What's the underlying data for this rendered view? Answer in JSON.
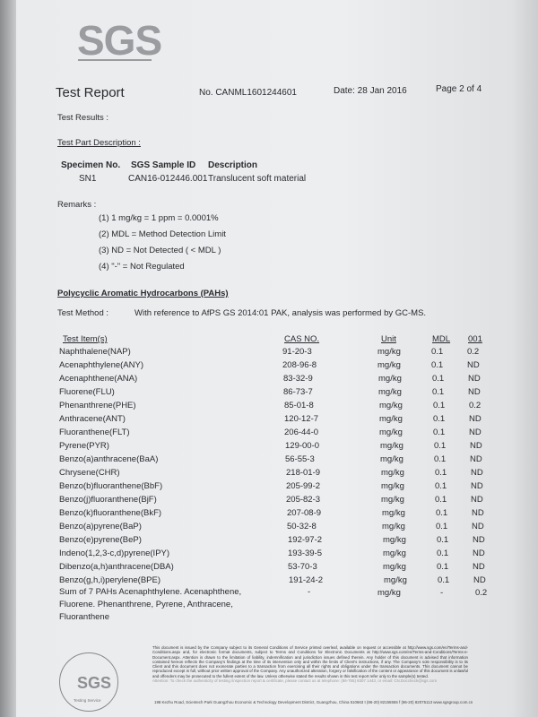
{
  "logo": "SGS",
  "header": {
    "title": "Test Report",
    "report_no": "No. CANML1601244601",
    "date": "Date: 28 Jan 2016",
    "page": "Page 2 of 4"
  },
  "test_results_label": "Test Results :",
  "test_part_description_label": "Test Part Description :",
  "specimen": {
    "headers": [
      "Specimen No.",
      "SGS Sample ID",
      "Description"
    ],
    "row": [
      "SN1",
      "CAN16-012446.001",
      "Translucent soft material"
    ]
  },
  "remarks": {
    "label": "Remarks :",
    "items": [
      "(1) 1 mg/kg = 1 ppm = 0.0001%",
      "(2) MDL = Method Detection Limit",
      "(3) ND = Not Detected ( < MDL )",
      "(4) \"-\" = Not Regulated"
    ]
  },
  "section_title": "Polycyclic Aromatic Hydrocarbons (PAHs)",
  "test_method": {
    "label": "Test Method :",
    "text": "With reference to AfPS GS 2014:01 PAK, analysis was performed by GC-MS."
  },
  "table": {
    "headers": [
      "Test Item(s)",
      "CAS NO.",
      "Unit",
      "MDL",
      "001"
    ],
    "rows": [
      [
        "Naphthalene(NAP)",
        "91-20-3",
        "mg/kg",
        "0.1",
        "0.2"
      ],
      [
        "Acenaphthylene(ANY)",
        "208-96-8",
        "mg/kg",
        "0.1",
        "ND"
      ],
      [
        "Acenaphthene(ANA)",
        "83-32-9",
        "mg/kg",
        "0.1",
        "ND"
      ],
      [
        "Fluorene(FLU)",
        "86-73-7",
        "mg/kg",
        "0.1",
        "ND"
      ],
      [
        "Phenanthrene(PHE)",
        "85-01-8",
        "mg/kg",
        "0.1",
        "0.2"
      ],
      [
        "Anthracene(ANT)",
        "120-12-7",
        "mg/kg",
        "0.1",
        "ND"
      ],
      [
        "Fluoranthene(FLT)",
        "206-44-0",
        "mg/kg",
        "0.1",
        "ND"
      ],
      [
        "Pyrene(PYR)",
        "129-00-0",
        "mg/kg",
        "0.1",
        "ND"
      ],
      [
        "Benzo(a)anthracene(BaA)",
        "56-55-3",
        "mg/kg",
        "0.1",
        "ND"
      ],
      [
        "Chrysene(CHR)",
        "218-01-9",
        "mg/kg",
        "0.1",
        "ND"
      ],
      [
        "Benzo(b)fluoranthene(BbF)",
        "205-99-2",
        "mg/kg",
        "0.1",
        "ND"
      ],
      [
        "Benzo(j)fluoranthene(BjF)",
        "205-82-3",
        "mg/kg",
        "0.1",
        "ND"
      ],
      [
        "Benzo(k)fluoranthene(BkF)",
        "207-08-9",
        "mg/kg",
        "0.1",
        "ND"
      ],
      [
        "Benzo(a)pyrene(BaP)",
        "50-32-8",
        "mg/kg",
        "0.1",
        "ND"
      ],
      [
        "Benzo(e)pyrene(BeP)",
        "192-97-2",
        "mg/kg",
        "0.1",
        "ND"
      ],
      [
        "Indeno(1,2,3-c,d)pyrene(IPY)",
        "193-39-5",
        "mg/kg",
        "0.1",
        "ND"
      ],
      [
        "Dibenzo(a,h)anthracene(DBA)",
        "53-70-3",
        "mg/kg",
        "0.1",
        "ND"
      ],
      [
        "Benzo(g,h,i)perylene(BPE)",
        "191-24-2",
        "mg/kg",
        "0.1",
        "ND"
      ]
    ],
    "sum_row": {
      "lines": [
        "Sum of 7 PAHs Acenaphthylene. Acenaphthene,",
        "Fluorene. Phenanthrene, Pyrene, Anthracene,",
        "Fluoranthene"
      ],
      "cas": "-",
      "unit": "mg/kg",
      "mdl": "-",
      "result": "0.2"
    }
  },
  "footer": {
    "disclaimer": "This document is issued by the Company subject to its General Conditions of Service printed overleaf, available on request or accessible at http://www.sgs.com/en/Terms-and-Conditions.aspx and, for electronic format documents, subject to Terms and Conditions for Electronic Documents at http://www.sgs.com/en/Terms-and-Conditions/Terms-e-Document.aspx. Attention is drawn to the limitation of liability, indemnification and jurisdiction issues defined therein. Any holder of this document is advised that information contained hereon reflects the Company's findings at the time of its intervention only and within the limits of Client's instructions, if any. The Company's sole responsibility is to its Client and this document does not exonerate parties to a transaction from exercising all their rights and obligations under the transaction documents. This document cannot be reproduced except in full, without prior written approval of the Company. Any unauthorized alteration, forgery or falsification of the content or appearance of this document is unlawful and offenders may be prosecuted to the fullest extent of the law. Unless otherwise stated the results shown in this test report refer only to the sample(s) tested.",
    "attention": "Attention: To check the authenticity of testing /inspection report & certificate, please contact us at telephone: (86-755) 8307 1443, or email: CN.Doccheck@sgs.com",
    "address": "198 Kezhu Road, Scientech Park Guangzhou Economic & Technology Development District, Guangzhou, China 510663   t (86-20) 82155555   f (86-20) 82075113   www.sgsgroup.com.cn",
    "stamp_logo": "SGS",
    "stamp_text": "Testing Service"
  }
}
